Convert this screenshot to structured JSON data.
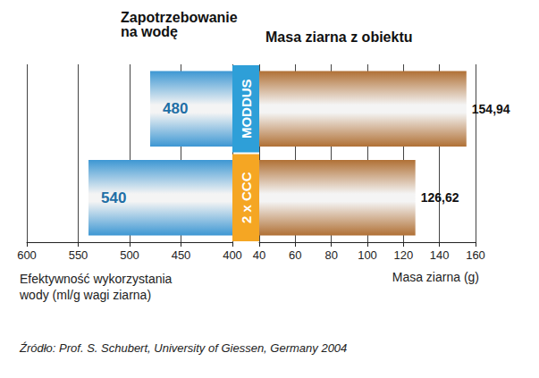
{
  "chart_data": [
    {
      "type": "bar",
      "orientation": "horizontal",
      "title": "Zapotrzebowanie na wodę",
      "x_label": "Efektywność wykorzystania wody (ml/g wagi ziarna)",
      "categories": [
        "MODDUS",
        "2 x CCC"
      ],
      "values": [
        480,
        540
      ],
      "color": "#3d97d3",
      "xlim": [
        600,
        400
      ],
      "xticks": [
        600,
        550,
        500,
        450,
        400
      ],
      "grid": true,
      "data_labels": true
    },
    {
      "type": "bar",
      "orientation": "horizontal",
      "title": "Masa ziarna z obiektu",
      "x_label": "Masa ziarna (g)",
      "categories": [
        "MODDUS",
        "2 x CCC"
      ],
      "values": [
        154.94,
        126.62
      ],
      "value_labels": [
        "154,94",
        "126,62"
      ],
      "color": "#b07035",
      "xlim": [
        40,
        160
      ],
      "xticks": [
        40,
        60,
        80,
        100,
        120,
        140,
        160
      ],
      "grid": true,
      "data_labels": true
    }
  ],
  "source": "Źródło: Prof. S. Schubert, University of Giessen, Germany 2004"
}
